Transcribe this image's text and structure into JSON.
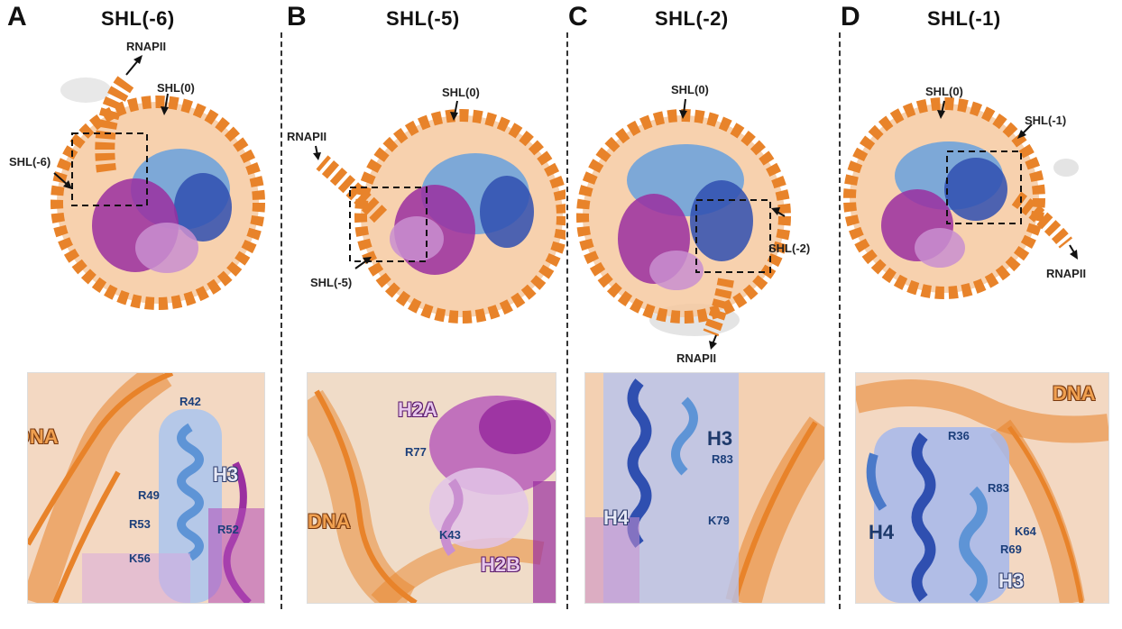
{
  "panels": [
    {
      "letter": "A",
      "title": "SHL(-6)",
      "labels": [
        "RNAPII",
        "SHL(0)",
        "SHL(-6)"
      ],
      "zoom": {
        "dna": "DNA",
        "histone": "H3",
        "residues": [
          "R42",
          "R49",
          "R53",
          "R52",
          "K56"
        ]
      }
    },
    {
      "letter": "B",
      "title": "SHL(-5)",
      "labels": [
        "SHL(0)",
        "RNAPII",
        "SHL(-5)"
      ],
      "zoom": {
        "dna": "DNA",
        "histone_1": "H2A",
        "histone_2": "H2B",
        "residues": [
          "R77",
          "K43"
        ]
      }
    },
    {
      "letter": "C",
      "title": "SHL(-2)",
      "labels": [
        "SHL(0)",
        "SHL(-2)",
        "RNAPII"
      ],
      "zoom": {
        "histone_1": "H3",
        "histone_2": "H4",
        "residues": [
          "R83",
          "K79"
        ]
      }
    },
    {
      "letter": "D",
      "title": "SHL(-1)",
      "labels": [
        "SHL(0)",
        "SHL(-1)",
        "RNAPII"
      ],
      "zoom": {
        "dna": "DNA",
        "histone_1": "H4",
        "histone_2": "H3",
        "residues": [
          "R36",
          "R83",
          "K64",
          "R69"
        ]
      }
    }
  ],
  "colors": {
    "dna": "#e8832a",
    "dna_surface": "#f6c9a0",
    "h3": "#6fa3dc",
    "h4": "#2f4fb0",
    "h2a": "#9a2fa0",
    "h2b": "#c98fd0"
  }
}
